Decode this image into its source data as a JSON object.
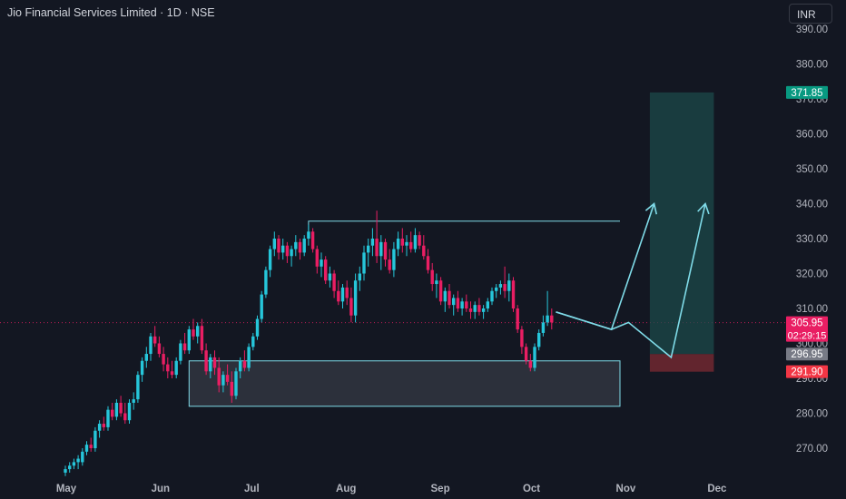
{
  "header": {
    "title": "Jio Financial Services Limited · 1D · NSE",
    "currency": "INR"
  },
  "colors": {
    "background": "#131722",
    "up": "#26c6da",
    "down": "#e91e63",
    "axis_text": "#b2b5be",
    "annotation": "#7fdbe8",
    "target_zone": "#1c4a4a",
    "stop_zone": "#6b2730",
    "target_badge": "#089981",
    "stop_badge": "#f23645",
    "price_badge": "#e91e63",
    "avg_badge": "#787b86"
  },
  "chart_data": {
    "type": "candlestick",
    "title": "Jio Financial Services Limited · 1D · NSE",
    "y_ticks": [
      "270.00",
      "280.00",
      "290.00",
      "300.00",
      "310.00",
      "320.00",
      "330.00",
      "340.00",
      "350.00",
      "360.00",
      "370.00",
      "380.00",
      "390.00"
    ],
    "ylim": [
      262,
      392
    ],
    "x_ticks": [
      "May",
      "Jun",
      "Jul",
      "Aug",
      "Sep",
      "Oct",
      "Nov",
      "Dec"
    ],
    "x_tick_days": [
      0,
      31,
      61,
      92,
      123,
      153,
      184,
      214
    ],
    "price_labels": {
      "target": {
        "value": 371.85,
        "text": "371.85"
      },
      "current": {
        "value": 305.95,
        "text": "305.95",
        "countdown": "02:29:15"
      },
      "mid": {
        "value": 296.95,
        "text": "296.95"
      },
      "stop": {
        "value": 291.9,
        "text": "291.90"
      }
    },
    "candles": [
      [
        0,
        263,
        265,
        262,
        264
      ],
      [
        1,
        264,
        266,
        263,
        265
      ],
      [
        2,
        265,
        267,
        264,
        266
      ],
      [
        3,
        266,
        268,
        264,
        267
      ],
      [
        4,
        266,
        270,
        265,
        269
      ],
      [
        5,
        269,
        272,
        268,
        271
      ],
      [
        6,
        271,
        273,
        269,
        270
      ],
      [
        7,
        270,
        276,
        269,
        275
      ],
      [
        8,
        275,
        278,
        273,
        277
      ],
      [
        9,
        277,
        279,
        275,
        276
      ],
      [
        10,
        276,
        282,
        275,
        281
      ],
      [
        11,
        281,
        283,
        278,
        279
      ],
      [
        12,
        279,
        284,
        278,
        283
      ],
      [
        13,
        283,
        285,
        279,
        280
      ],
      [
        14,
        280,
        283,
        277,
        278
      ],
      [
        15,
        278,
        284,
        277,
        283
      ],
      [
        16,
        283,
        286,
        281,
        284
      ],
      [
        17,
        284,
        292,
        283,
        291
      ],
      [
        18,
        291,
        296,
        289,
        295
      ],
      [
        19,
        295,
        299,
        293,
        297
      ],
      [
        20,
        297,
        303,
        295,
        302
      ],
      [
        21,
        302,
        305,
        299,
        300
      ],
      [
        22,
        300,
        302,
        296,
        297
      ],
      [
        23,
        297,
        299,
        292,
        294
      ],
      [
        24,
        294,
        296,
        290,
        292
      ],
      [
        25,
        292,
        295,
        290,
        291
      ],
      [
        26,
        291,
        296,
        290,
        295
      ],
      [
        27,
        295,
        301,
        294,
        300
      ],
      [
        28,
        300,
        303,
        297,
        298
      ],
      [
        29,
        298,
        305,
        297,
        304
      ],
      [
        30,
        304,
        307,
        301,
        302
      ],
      [
        31,
        302,
        306,
        300,
        305
      ],
      [
        32,
        305,
        307,
        297,
        298
      ],
      [
        33,
        298,
        300,
        291,
        292
      ],
      [
        34,
        292,
        297,
        290,
        296
      ],
      [
        35,
        296,
        298,
        291,
        293
      ],
      [
        36,
        293,
        296,
        286,
        288
      ],
      [
        37,
        288,
        292,
        286,
        291
      ],
      [
        38,
        291,
        294,
        288,
        289
      ],
      [
        39,
        289,
        292,
        283,
        285
      ],
      [
        40,
        285,
        293,
        284,
        292
      ],
      [
        41,
        292,
        296,
        290,
        295
      ],
      [
        42,
        295,
        298,
        292,
        293
      ],
      [
        43,
        293,
        300,
        292,
        299
      ],
      [
        44,
        299,
        303,
        298,
        302
      ],
      [
        45,
        302,
        308,
        301,
        307
      ],
      [
        46,
        307,
        315,
        306,
        314
      ],
      [
        47,
        314,
        322,
        313,
        321
      ],
      [
        48,
        321,
        328,
        319,
        327
      ],
      [
        49,
        327,
        332,
        325,
        330
      ],
      [
        50,
        330,
        331,
        324,
        326
      ],
      [
        51,
        326,
        330,
        324,
        328
      ],
      [
        52,
        328,
        329,
        323,
        325
      ],
      [
        53,
        325,
        328,
        322,
        327
      ],
      [
        54,
        327,
        331,
        325,
        329
      ],
      [
        55,
        329,
        330,
        324,
        326
      ],
      [
        56,
        326,
        331,
        325,
        330
      ],
      [
        57,
        330,
        334,
        328,
        332
      ],
      [
        58,
        332,
        333,
        326,
        327
      ],
      [
        59,
        327,
        328,
        320,
        322
      ],
      [
        60,
        322,
        326,
        319,
        324
      ],
      [
        61,
        324,
        325,
        317,
        318
      ],
      [
        62,
        318,
        322,
        316,
        320
      ],
      [
        63,
        320,
        321,
        313,
        315
      ],
      [
        64,
        315,
        318,
        311,
        312
      ],
      [
        65,
        312,
        317,
        310,
        316
      ],
      [
        66,
        316,
        318,
        311,
        313
      ],
      [
        67,
        313,
        316,
        306,
        308
      ],
      [
        68,
        308,
        320,
        306,
        318
      ],
      [
        69,
        318,
        322,
        315,
        320
      ],
      [
        70,
        320,
        328,
        318,
        326
      ],
      [
        71,
        326,
        330,
        322,
        328
      ],
      [
        72,
        328,
        333,
        325,
        330
      ],
      [
        73,
        330,
        338,
        323,
        325
      ],
      [
        74,
        325,
        331,
        321,
        329
      ],
      [
        75,
        329,
        330,
        322,
        324
      ],
      [
        76,
        324,
        327,
        320,
        321
      ],
      [
        77,
        321,
        329,
        319,
        327
      ],
      [
        78,
        327,
        332,
        325,
        330
      ],
      [
        79,
        330,
        333,
        326,
        328
      ],
      [
        80,
        328,
        331,
        325,
        329
      ],
      [
        81,
        329,
        332,
        326,
        327
      ],
      [
        82,
        327,
        333,
        326,
        331
      ],
      [
        83,
        331,
        332,
        327,
        328
      ],
      [
        84,
        328,
        331,
        324,
        325
      ],
      [
        85,
        325,
        327,
        320,
        321
      ],
      [
        86,
        321,
        323,
        315,
        317
      ],
      [
        87,
        317,
        320,
        313,
        318
      ],
      [
        88,
        318,
        319,
        311,
        312
      ],
      [
        89,
        312,
        316,
        309,
        315
      ],
      [
        90,
        315,
        317,
        310,
        311
      ],
      [
        91,
        311,
        314,
        308,
        313
      ],
      [
        92,
        313,
        315,
        309,
        310
      ],
      [
        93,
        310,
        313,
        308,
        312
      ],
      [
        94,
        312,
        314,
        309,
        310
      ],
      [
        95,
        310,
        312,
        307,
        309
      ],
      [
        96,
        309,
        312,
        307,
        311
      ],
      [
        97,
        311,
        313,
        308,
        309
      ],
      [
        98,
        309,
        311,
        307,
        310
      ],
      [
        99,
        310,
        313,
        309,
        312
      ],
      [
        100,
        312,
        316,
        311,
        315
      ],
      [
        101,
        315,
        317,
        313,
        316
      ],
      [
        102,
        316,
        318,
        314,
        317
      ],
      [
        103,
        317,
        322,
        313,
        315
      ],
      [
        104,
        315,
        320,
        312,
        318
      ],
      [
        105,
        318,
        319,
        309,
        310
      ],
      [
        106,
        310,
        311,
        303,
        304
      ],
      [
        107,
        304,
        305,
        297,
        299
      ],
      [
        108,
        299,
        300,
        294,
        295
      ],
      [
        109,
        295,
        297,
        292,
        293
      ],
      [
        110,
        293,
        300,
        292,
        299
      ],
      [
        111,
        299,
        304,
        298,
        303
      ],
      [
        112,
        303,
        308,
        302,
        306
      ],
      [
        113,
        306,
        315,
        305,
        308
      ],
      [
        114,
        308,
        310,
        304,
        306
      ]
    ],
    "resistance_line": {
      "start_idx": 57,
      "end_idx": 130,
      "price": 335
    },
    "support_zone": {
      "start_idx": 29,
      "end_idx": 130,
      "top": 295,
      "bottom": 282
    },
    "position": {
      "start_idx": 137,
      "end_idx": 152,
      "target": 371.85,
      "entry": 296.95,
      "stop": 291.9
    },
    "projection_a": [
      [
        115,
        309
      ],
      [
        128,
        304
      ],
      [
        138,
        340
      ]
    ],
    "projection_b": [
      [
        115,
        309
      ],
      [
        128,
        304
      ],
      [
        132,
        306
      ],
      [
        142,
        296
      ],
      [
        150,
        340
      ]
    ]
  }
}
